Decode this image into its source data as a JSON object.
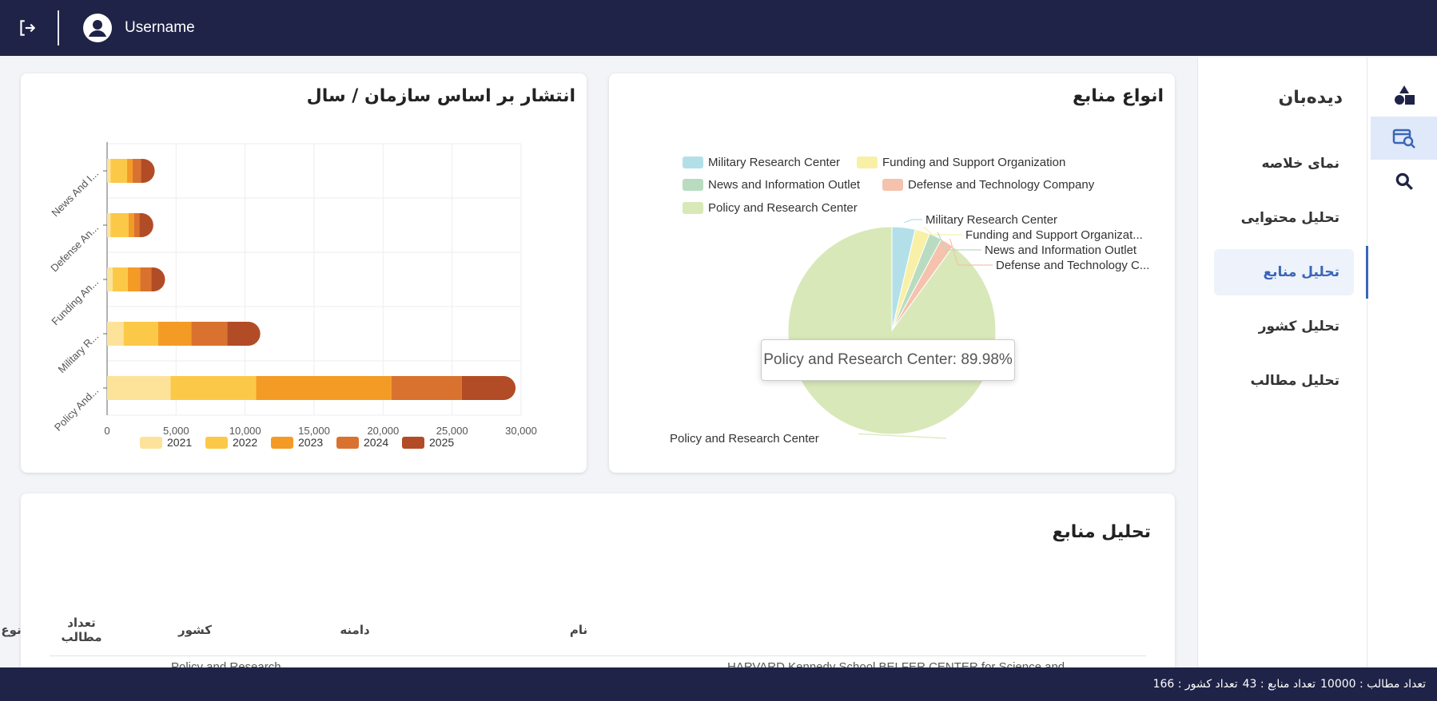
{
  "header": {
    "username": "Username"
  },
  "rail": {
    "icons": [
      "shapes-icon",
      "sources-search-icon",
      "search-icon"
    ],
    "active_index": 1
  },
  "nav": {
    "title": "دیده‌بان",
    "items": [
      {
        "label": "نمای خلاصه"
      },
      {
        "label": "تحلیل محتوایی"
      },
      {
        "label": "تحلیل منابع"
      },
      {
        "label": "تحلیل کشور"
      },
      {
        "label": "تحلیل مطالب"
      }
    ],
    "active_index": 2
  },
  "pie_card": {
    "title": "انواع منابع",
    "tooltip": "Policy and Research Center: 89.98%"
  },
  "bar_card": {
    "title": "انتشار بر اساس سازمان / سال"
  },
  "sources_table": {
    "title": "تحلیل منابع",
    "columns": [
      "نام",
      "دامنه",
      "کشور",
      "نوع",
      "تعداد مطالب"
    ],
    "row_fragments": [
      "HARVARD Kennedy School BELFER CENTER for Science and",
      "Policy and Research"
    ]
  },
  "footer": {
    "posts_count": "تعداد مطالب : 10000",
    "sources_count": "تعداد منابع : 43",
    "countries_count": "تعداد کشور : 166"
  },
  "chart_data": [
    {
      "type": "pie",
      "title": "انواع منابع",
      "slices": [
        {
          "name": "Military Research Center",
          "value": 3.6,
          "color": "#b3e0e8"
        },
        {
          "name": "Funding and Support Organization",
          "value": 2.3,
          "color": "#f8f0a6"
        },
        {
          "name": "News and Information Outlet",
          "value": 2.0,
          "color": "#b9dcc0"
        },
        {
          "name": "Defense and Technology Company",
          "value": 2.1,
          "color": "#f5c2ad"
        },
        {
          "name": "Policy and Research Center",
          "value": 89.98,
          "color": "#d8e8b8"
        }
      ],
      "slice_labels": [
        "Military Research Center",
        "Funding and Support Organizat...",
        "News and Information Outlet",
        "Defense and Technology C...",
        "Policy and Research Center"
      ],
      "legend_placement": "top"
    },
    {
      "type": "bar",
      "orientation": "horizontal",
      "stacked": true,
      "title": "انتشار بر اساس سازمان / سال",
      "categories": [
        "Policy And...",
        "Military R...",
        "Funding An...",
        "Defense An...",
        "News And I..."
      ],
      "series": [
        {
          "name": "2021",
          "color": "#fde29a",
          "values": [
            4600,
            1200,
            400,
            250,
            250
          ]
        },
        {
          "name": "2022",
          "color": "#fbc947",
          "values": [
            6200,
            2500,
            1100,
            1300,
            1200
          ]
        },
        {
          "name": "2023",
          "color": "#f49b26",
          "values": [
            9800,
            2400,
            900,
            400,
            400
          ]
        },
        {
          "name": "2024",
          "color": "#d9722f",
          "values": [
            5100,
            2600,
            800,
            400,
            600
          ]
        },
        {
          "name": "2025",
          "color": "#b24c26",
          "values": [
            3900,
            2400,
            1000,
            1000,
            1000
          ]
        }
      ],
      "xlim": [
        0,
        30000
      ],
      "xticks": [
        "0",
        "5,000",
        "10,000",
        "15,000",
        "20,000",
        "25,000",
        "30,000"
      ],
      "grid": true,
      "legend_placement": "bottom"
    }
  ]
}
